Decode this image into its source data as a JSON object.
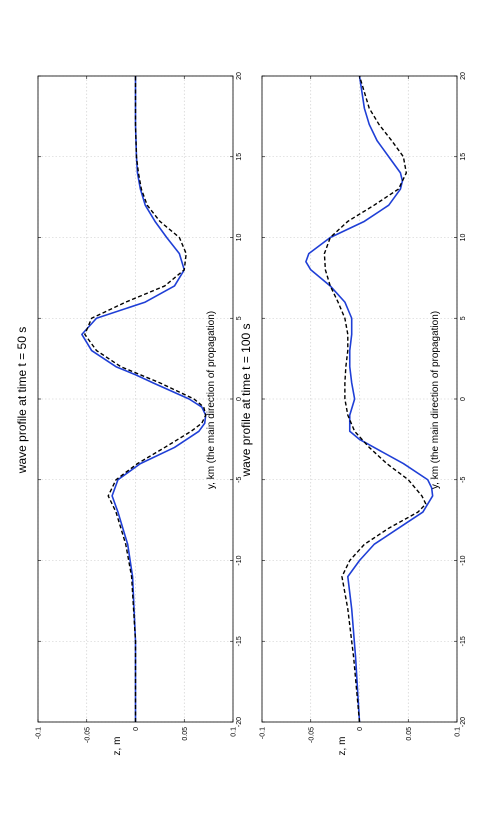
{
  "chart_data": [
    {
      "type": "line",
      "title": "wave profile at time t = 50 s",
      "xlabel": "y, km (the main direction of propagation)",
      "ylabel": "z, m",
      "xlim": [
        -20,
        20
      ],
      "ylim": [
        -0.1,
        0.1
      ],
      "xticks": [
        "-20",
        "-15",
        "-10",
        "-5",
        "0",
        "5",
        "10",
        "15",
        "20"
      ],
      "yticks": [
        "-0.1",
        "-0.05",
        "0",
        "0.05",
        "0.1"
      ],
      "grid": true,
      "orientation": "rotated 90° counter-clockwise",
      "series": [
        {
          "color": "#1f3fd6",
          "style": "solid",
          "x": [
            -20,
            -15,
            -11,
            -9,
            -7,
            -6,
            -5,
            -4,
            -3,
            -2,
            -1.5,
            -1,
            -0.5,
            0,
            1,
            1.5,
            2,
            3,
            4,
            5,
            6,
            7,
            8,
            9,
            10,
            11,
            12,
            13,
            14,
            15,
            17,
            20
          ],
          "y": [
            0,
            0,
            -0.003,
            -0.008,
            -0.018,
            -0.024,
            -0.018,
            0.005,
            0.04,
            0.065,
            0.071,
            0.072,
            0.068,
            0.055,
            0.018,
            0,
            -0.02,
            -0.045,
            -0.055,
            -0.04,
            0.01,
            0.04,
            0.05,
            0.045,
            0.032,
            0.02,
            0.01,
            0.005,
            0.002,
            0.001,
            0,
            0
          ]
        },
        {
          "color": "#000000",
          "style": "dashed",
          "x": [
            -20,
            -15,
            -11,
            -9,
            -7,
            -6,
            -5,
            -4,
            -3,
            -2,
            -1.5,
            -1,
            -0.5,
            0,
            1,
            1.5,
            2,
            3,
            4,
            5,
            6,
            7,
            8,
            9,
            10,
            11,
            12,
            13,
            14,
            15,
            17,
            20
          ],
          "y": [
            0,
            0,
            -0.004,
            -0.01,
            -0.02,
            -0.028,
            -0.02,
            0.002,
            0.03,
            0.057,
            0.068,
            0.072,
            0.07,
            0.06,
            0.025,
            0.005,
            -0.015,
            -0.04,
            -0.052,
            -0.045,
            -0.01,
            0.03,
            0.05,
            0.052,
            0.045,
            0.025,
            0.012,
            0.006,
            0.003,
            0.001,
            0,
            0
          ]
        }
      ]
    },
    {
      "type": "line",
      "title": "wave profile at time t = 100 s",
      "xlabel": "y, km (the main direction of propagation)",
      "ylabel": "z, m",
      "xlim": [
        -20,
        20
      ],
      "ylim": [
        -0.1,
        0.1
      ],
      "xticks": [
        "-20",
        "-15",
        "-10",
        "-5",
        "0",
        "5",
        "10",
        "15",
        "20"
      ],
      "yticks": [
        "-0.1",
        "-0.05",
        "0",
        "0.05",
        "0.1"
      ],
      "grid": true,
      "orientation": "rotated 90° counter-clockwise",
      "series": [
        {
          "color": "#1f3fd6",
          "style": "solid",
          "x": [
            -20,
            -16,
            -13,
            -11,
            -10,
            -9,
            -8,
            -7,
            -6,
            -5.5,
            -5,
            -4,
            -3,
            -2.5,
            -2,
            -1,
            0,
            1,
            2,
            3,
            4,
            5,
            6,
            7,
            8,
            8.5,
            9,
            10,
            11,
            12,
            13,
            13.5,
            14,
            15,
            16,
            17,
            18,
            20
          ],
          "y": [
            0,
            -0.004,
            -0.008,
            -0.012,
            0,
            0.015,
            0.04,
            0.065,
            0.075,
            0.074,
            0.07,
            0.045,
            0.015,
            0,
            -0.01,
            -0.01,
            -0.005,
            -0.008,
            -0.01,
            -0.01,
            -0.008,
            -0.008,
            -0.015,
            -0.03,
            -0.05,
            -0.055,
            -0.052,
            -0.03,
            0.005,
            0.03,
            0.042,
            0.044,
            0.042,
            0.03,
            0.018,
            0.01,
            0.005,
            0
          ]
        },
        {
          "color": "#000000",
          "style": "dashed",
          "x": [
            -20,
            -16,
            -13,
            -11,
            -10,
            -9,
            -8,
            -7,
            -6.5,
            -6,
            -5,
            -4,
            -3,
            -2,
            -1,
            0,
            1,
            2,
            3,
            4,
            5,
            6,
            7,
            8,
            9,
            10,
            11,
            12,
            13,
            14,
            15,
            16,
            17,
            18,
            20
          ],
          "y": [
            0,
            -0.006,
            -0.012,
            -0.018,
            -0.01,
            0.005,
            0.03,
            0.06,
            0.068,
            0.064,
            0.05,
            0.028,
            0.01,
            -0.005,
            -0.012,
            -0.015,
            -0.015,
            -0.014,
            -0.012,
            -0.012,
            -0.015,
            -0.022,
            -0.03,
            -0.035,
            -0.036,
            -0.03,
            -0.012,
            0.015,
            0.04,
            0.048,
            0.045,
            0.033,
            0.02,
            0.01,
            0
          ]
        }
      ]
    }
  ]
}
